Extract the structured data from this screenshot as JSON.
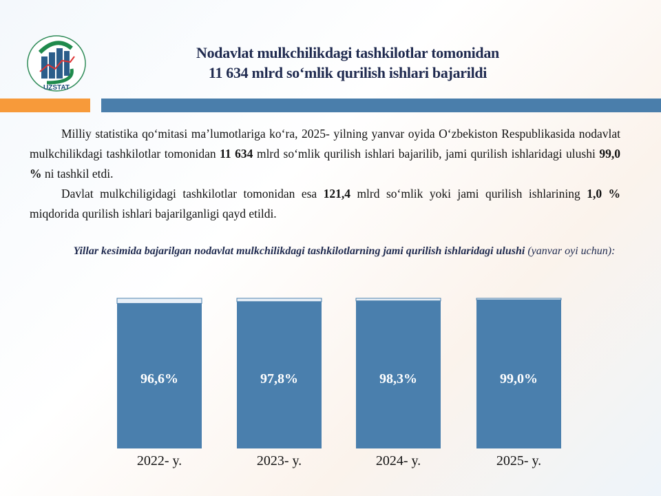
{
  "header": {
    "title_line1": "Nodavlat mulkchilikdagi tashkilotlar tomonidan",
    "title_line2": "11 634 mlrd so‘mlik qurilish ishlari bajarildi",
    "logo_text": "UZSTAT"
  },
  "body": {
    "p1_a": "Milliy statistika qo‘mitasi ma’lumotlariga ko‘ra, 2025- yilning yanvar oyida O‘zbekiston Respublikasida nodavlat mulkchilikdagi tashkilotlar tomonidan ",
    "p1_b": "11 634",
    "p1_c": " mlrd so‘mlik qurilish ishlari bajarilib, jami qurilish ishlaridagi ulushi ",
    "p1_d": "99,0 %",
    "p1_e": " ni tashkil etdi.",
    "p2_a": "Davlat mulkchiligidagi tashkilotlar tomonidan esa ",
    "p2_b": "121,4",
    "p2_c": " mlrd so‘mlik yoki jami qurilish ishlarining ",
    "p2_d": "1,0 %",
    "p2_e": " miqdorida qurilish ishlari bajarilganligi qayd etildi."
  },
  "chart_data": {
    "type": "bar",
    "stacked": true,
    "title_bold": "Yillar kesimida bajarilgan nodavlat mulkchilikdagi tashkilotlarning jami qurilish ishlaridagi ulushi",
    "title_rest": " (yanvar oyi uchun):",
    "categories": [
      "2022- y.",
      "2023- y.",
      "2024- y.",
      "2025- y."
    ],
    "values": [
      96.6,
      97.8,
      98.3,
      99.0
    ],
    "remainder": [
      3.4,
      2.2,
      1.7,
      1.0
    ],
    "data_labels": [
      "96,6%",
      "97,8%",
      "98,3%",
      "99,0%"
    ],
    "ylim": [
      0,
      100
    ],
    "colors": {
      "value": "#4a7fad",
      "remainder": "#e9f0f8"
    }
  }
}
